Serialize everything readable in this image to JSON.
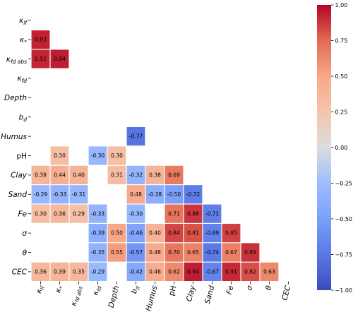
{
  "chart_data": {
    "type": "heatmap",
    "variables": [
      "κ_lf",
      "κ_*",
      "κ_fd abs",
      "κ_fd",
      "Depth",
      "b_d",
      "Humus",
      "pH",
      "Clay",
      "Sand",
      "Fe",
      "σ",
      "θ",
      "CEC"
    ],
    "y_labels": [
      {
        "base": "κ",
        "sub": "lf",
        "italic": true
      },
      {
        "base": "κ",
        "sub": "*",
        "italic": true
      },
      {
        "base": "κ",
        "sub": "fd abs",
        "italic": true
      },
      {
        "base": "κ",
        "sub": "fd",
        "italic": true
      },
      {
        "base": "Depth",
        "sub": "",
        "italic": true
      },
      {
        "base": "b",
        "sub": "d",
        "italic": true
      },
      {
        "base": "Humus",
        "sub": "",
        "italic": true
      },
      {
        "base": "pH",
        "sub": "",
        "italic": false
      },
      {
        "base": "Clay",
        "sub": "",
        "italic": true
      },
      {
        "base": "Sand",
        "sub": "",
        "italic": true
      },
      {
        "base": "Fe",
        "sub": "",
        "italic": true
      },
      {
        "base": "σ",
        "sub": "",
        "italic": true
      },
      {
        "base": "θ",
        "sub": "",
        "italic": true
      },
      {
        "base": "CEC",
        "sub": "",
        "italic": true
      }
    ],
    "x_labels": [
      {
        "base": "κ",
        "sub": "lf",
        "italic": true
      },
      {
        "base": "κ",
        "sub": "*",
        "italic": true
      },
      {
        "base": "κ",
        "sub": "fd abs",
        "italic": true
      },
      {
        "base": "κ",
        "sub": "fd",
        "italic": true
      },
      {
        "base": "Depth",
        "sub": "",
        "italic": true
      },
      {
        "base": "b",
        "sub": "d",
        "italic": true
      },
      {
        "base": "Humus",
        "sub": "",
        "italic": true
      },
      {
        "base": "pH",
        "sub": "",
        "italic": false
      },
      {
        "base": "Clay",
        "sub": "",
        "italic": true
      },
      {
        "base": "Sand",
        "sub": "",
        "italic": true
      },
      {
        "base": "Fe",
        "sub": "",
        "italic": true
      },
      {
        "base": "σ",
        "sub": "",
        "italic": true
      },
      {
        "base": "θ",
        "sub": "",
        "italic": true
      },
      {
        "base": "CEC",
        "sub": "",
        "italic": true
      }
    ],
    "values": [
      [
        null,
        null,
        null,
        null,
        null,
        null,
        null,
        null,
        null,
        null,
        null,
        null,
        null,
        null
      ],
      [
        0.93,
        null,
        null,
        null,
        null,
        null,
        null,
        null,
        null,
        null,
        null,
        null,
        null,
        null
      ],
      [
        0.92,
        0.94,
        null,
        null,
        null,
        null,
        null,
        null,
        null,
        null,
        null,
        null,
        null,
        null
      ],
      [
        null,
        null,
        null,
        null,
        null,
        null,
        null,
        null,
        null,
        null,
        null,
        null,
        null,
        null
      ],
      [
        null,
        null,
        null,
        null,
        null,
        null,
        null,
        null,
        null,
        null,
        null,
        null,
        null,
        null
      ],
      [
        null,
        null,
        null,
        null,
        null,
        null,
        null,
        null,
        null,
        null,
        null,
        null,
        null,
        null
      ],
      [
        null,
        null,
        null,
        null,
        null,
        -0.77,
        null,
        null,
        null,
        null,
        null,
        null,
        null,
        null
      ],
      [
        null,
        0.3,
        null,
        -0.3,
        0.3,
        null,
        null,
        null,
        null,
        null,
        null,
        null,
        null,
        null
      ],
      [
        0.39,
        0.44,
        0.4,
        null,
        0.31,
        -0.32,
        0.38,
        0.69,
        null,
        null,
        null,
        null,
        null,
        null
      ],
      [
        -0.29,
        -0.33,
        -0.31,
        null,
        null,
        0.48,
        -0.38,
        -0.5,
        -0.72,
        null,
        null,
        null,
        null,
        null
      ],
      [
        0.3,
        0.36,
        0.29,
        -0.33,
        null,
        -0.3,
        null,
        0.71,
        0.88,
        -0.71,
        null,
        null,
        null,
        null
      ],
      [
        null,
        null,
        null,
        -0.39,
        0.5,
        -0.46,
        0.4,
        0.84,
        0.81,
        -0.69,
        0.85,
        null,
        null,
        null
      ],
      [
        null,
        null,
        null,
        -0.35,
        0.55,
        -0.57,
        0.48,
        0.7,
        0.65,
        -0.74,
        0.67,
        0.89,
        null,
        null
      ],
      [
        0.36,
        0.39,
        0.35,
        -0.29,
        null,
        -0.42,
        0.46,
        0.62,
        0.94,
        -0.67,
        0.91,
        0.82,
        0.63,
        null
      ]
    ],
    "colorbar": {
      "vmin": -1.0,
      "vmax": 1.0,
      "ticks": [
        1.0,
        0.75,
        0.5,
        0.25,
        0.0,
        -0.25,
        -0.5,
        -0.75,
        -1.0
      ],
      "tick_labels": [
        "1.00",
        "0.75",
        "0.50",
        "0.25",
        "0.00",
        "−0.25",
        "−0.50",
        "−0.75",
        "−1.00"
      ],
      "colormap": "coolwarm"
    },
    "annotation_format": "0.00",
    "grid": false,
    "legend": "colorbar-right"
  }
}
